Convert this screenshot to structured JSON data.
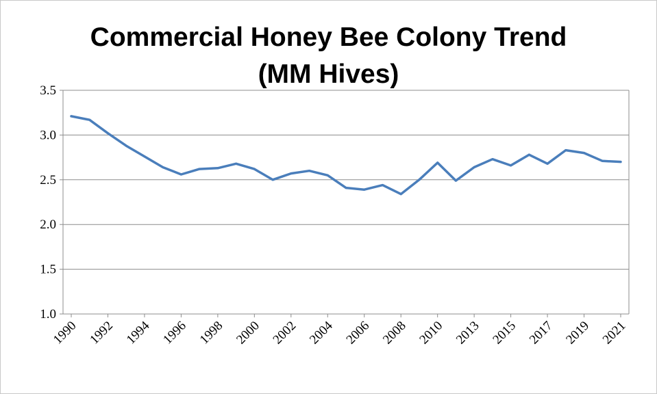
{
  "chart_data": {
    "type": "line",
    "title_line1": "Commercial Honey Bee Colony Trend",
    "title_line2": "(MM Hives)",
    "xlabel": "",
    "ylabel": "",
    "ylim": [
      1.0,
      3.5
    ],
    "yticks": [
      "1.0",
      "1.5",
      "2.0",
      "2.5",
      "3.0",
      "3.5"
    ],
    "grid": true,
    "line_color": "#4a7ebb",
    "x": [
      "1990",
      "1991",
      "1992",
      "1993",
      "1994",
      "1995",
      "1996",
      "1997",
      "1998",
      "1999",
      "2000",
      "2001",
      "2002",
      "2003",
      "2004",
      "2005",
      "2006",
      "2007",
      "2008",
      "2009",
      "2010",
      "2012",
      "2013",
      "2014",
      "2015",
      "2016",
      "2017",
      "2018",
      "2019",
      "2020",
      "2021"
    ],
    "xtick_labels": [
      "1990",
      "1992",
      "1994",
      "1996",
      "1998",
      "2000",
      "2002",
      "2004",
      "2006",
      "2008",
      "2010",
      "2013",
      "2015",
      "2017",
      "2019",
      "2021"
    ],
    "series": [
      {
        "values": [
          3.21,
          3.17,
          3.02,
          2.88,
          2.76,
          2.64,
          2.56,
          2.62,
          2.63,
          2.68,
          2.62,
          2.5,
          2.57,
          2.6,
          2.55,
          2.41,
          2.39,
          2.44,
          2.34,
          2.5,
          2.69,
          2.49,
          2.64,
          2.73,
          2.66,
          2.78,
          2.68,
          2.83,
          2.8,
          2.71,
          2.7
        ]
      }
    ]
  }
}
